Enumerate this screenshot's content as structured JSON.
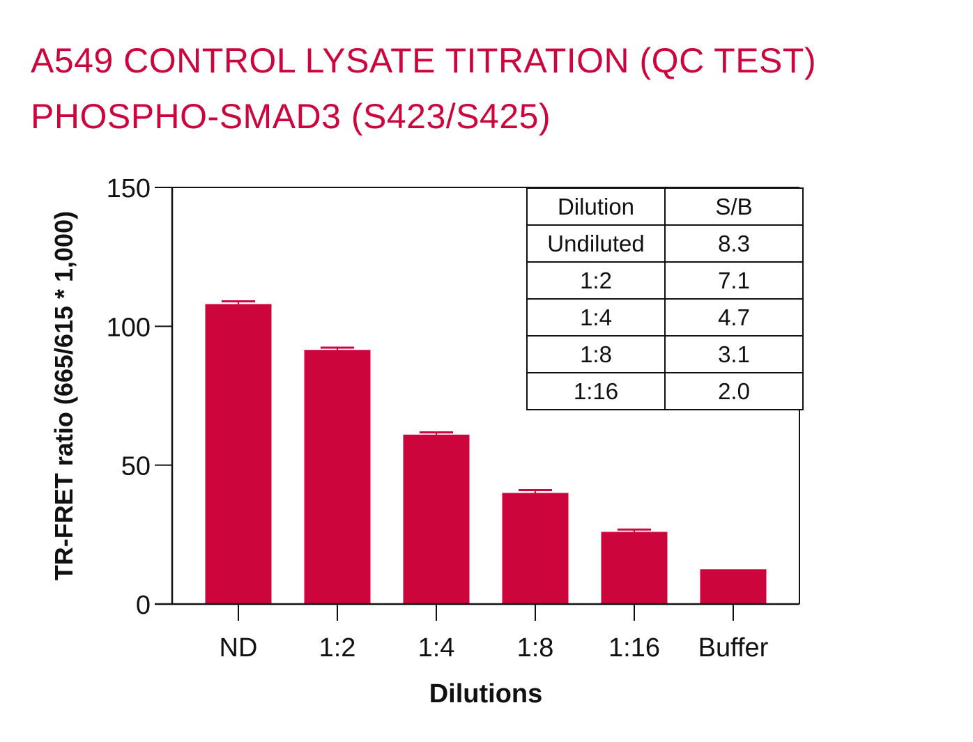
{
  "chart_data": {
    "type": "bar",
    "title": [
      "A549 CONTROL LYSATE TITRATION (QC TEST)",
      "PHOSPHO-SMAD3 (S423/S425)"
    ],
    "xlabel": "Dilutions",
    "ylabel": "TR-FRET ratio (665/615 * 1,000)",
    "categories": [
      "ND",
      "1:2",
      "1:4",
      "1:8",
      "1:16",
      "Buffer"
    ],
    "values": [
      108,
      91.5,
      61,
      40,
      26,
      12.5
    ],
    "errors": [
      1,
      0.8,
      0.8,
      1,
      0.8,
      0
    ],
    "ylim": [
      0,
      150
    ],
    "yticks": [
      0,
      50,
      100,
      150
    ],
    "grid": false,
    "bar_color": "#cc063c",
    "inset_table": {
      "position": "top-right",
      "headers": [
        "Dilution",
        "S/B"
      ],
      "rows": [
        [
          "Undiluted",
          "8.3"
        ],
        [
          "1:2",
          "7.1"
        ],
        [
          "1:4",
          "4.7"
        ],
        [
          "1:8",
          "3.1"
        ],
        [
          "1:16",
          "2.0"
        ]
      ]
    }
  }
}
